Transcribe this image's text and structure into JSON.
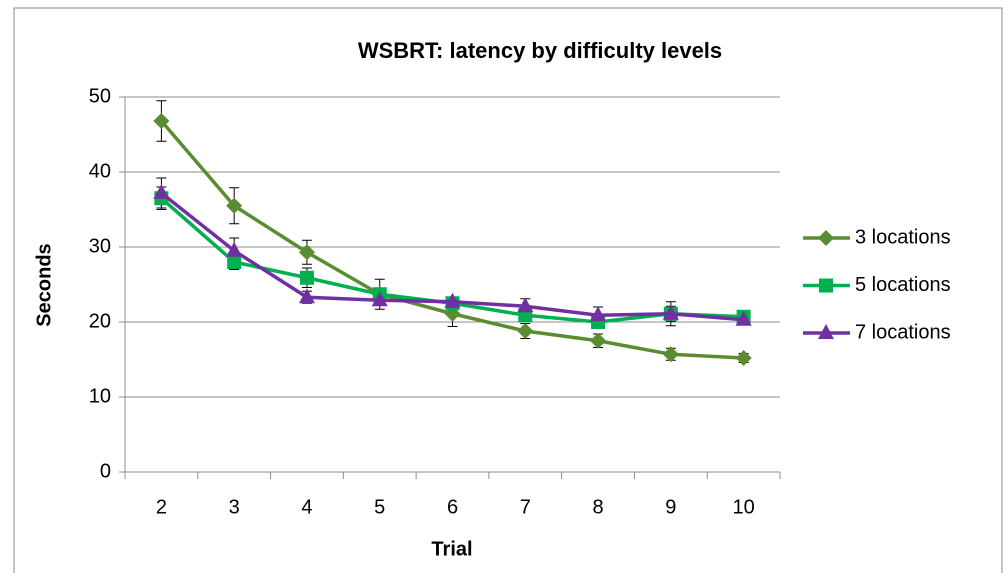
{
  "chart_data": {
    "type": "line",
    "title": "WSBRT: latency by difficulty levels",
    "xlabel": "Trial",
    "ylabel": "Seconds",
    "categories": [
      "2",
      "3",
      "4",
      "5",
      "6",
      "7",
      "8",
      "9",
      "10"
    ],
    "series": [
      {
        "name": "3 locations",
        "color": "#5B8C32",
        "marker": "diamond",
        "values": [
          46.8,
          35.5,
          29.3,
          23.7,
          21.1,
          18.8,
          17.5,
          15.7,
          15.2
        ],
        "errors": [
          2.7,
          2.4,
          1.6,
          2.0,
          1.7,
          1.0,
          0.9,
          0.8,
          0.6
        ]
      },
      {
        "name": "5 locations",
        "color": "#00B050",
        "marker": "square",
        "values": [
          36.5,
          28.0,
          25.9,
          23.7,
          22.5,
          20.9,
          20.0,
          21.1,
          20.7
        ],
        "errors": [
          1.5,
          1.0,
          1.3,
          0.5,
          0.7,
          0.7,
          0.6,
          1.0,
          0.5
        ]
      },
      {
        "name": "7 locations",
        "color": "#7030A0",
        "marker": "triangle",
        "values": [
          37.2,
          29.5,
          23.3,
          22.9,
          22.7,
          22.1,
          20.9,
          21.1,
          20.3
        ],
        "errors": [
          2.0,
          1.7,
          0.8,
          0.6,
          0.6,
          1.0,
          1.1,
          1.6,
          0.6
        ]
      }
    ],
    "ylim": [
      0,
      50
    ],
    "yticks": [
      0,
      10,
      20,
      30,
      40,
      50
    ],
    "grid": true,
    "legend": "right"
  }
}
